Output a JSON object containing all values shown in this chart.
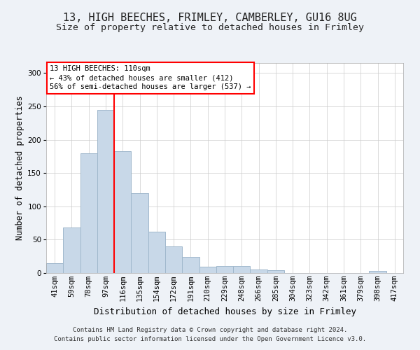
{
  "title1": "13, HIGH BEECHES, FRIMLEY, CAMBERLEY, GU16 8UG",
  "title2": "Size of property relative to detached houses in Frimley",
  "xlabel": "Distribution of detached houses by size in Frimley",
  "ylabel": "Number of detached properties",
  "categories": [
    "41sqm",
    "59sqm",
    "78sqm",
    "97sqm",
    "116sqm",
    "135sqm",
    "154sqm",
    "172sqm",
    "191sqm",
    "210sqm",
    "229sqm",
    "248sqm",
    "266sqm",
    "285sqm",
    "304sqm",
    "323sqm",
    "342sqm",
    "361sqm",
    "379sqm",
    "398sqm",
    "417sqm"
  ],
  "values": [
    15,
    68,
    180,
    245,
    183,
    120,
    62,
    40,
    24,
    9,
    11,
    11,
    5,
    4,
    0,
    0,
    0,
    0,
    0,
    3,
    0
  ],
  "bar_color": "#c8d8e8",
  "bar_edge_color": "#a0b8cc",
  "vline_color": "red",
  "annotation_text": "13 HIGH BEECHES: 110sqm\n← 43% of detached houses are smaller (412)\n56% of semi-detached houses are larger (537) →",
  "annotation_box_color": "#ffffff",
  "annotation_box_edge": "red",
  "ylim": [
    0,
    315
  ],
  "yticks": [
    0,
    50,
    100,
    150,
    200,
    250,
    300
  ],
  "footnote1": "Contains HM Land Registry data © Crown copyright and database right 2024.",
  "footnote2": "Contains public sector information licensed under the Open Government Licence v3.0.",
  "bg_color": "#eef2f7",
  "plot_bg_color": "#ffffff",
  "title1_fontsize": 11,
  "title2_fontsize": 9.5,
  "xlabel_fontsize": 9,
  "ylabel_fontsize": 8.5,
  "tick_fontsize": 7.5,
  "footnote_fontsize": 6.5,
  "annotation_fontsize": 7.5
}
